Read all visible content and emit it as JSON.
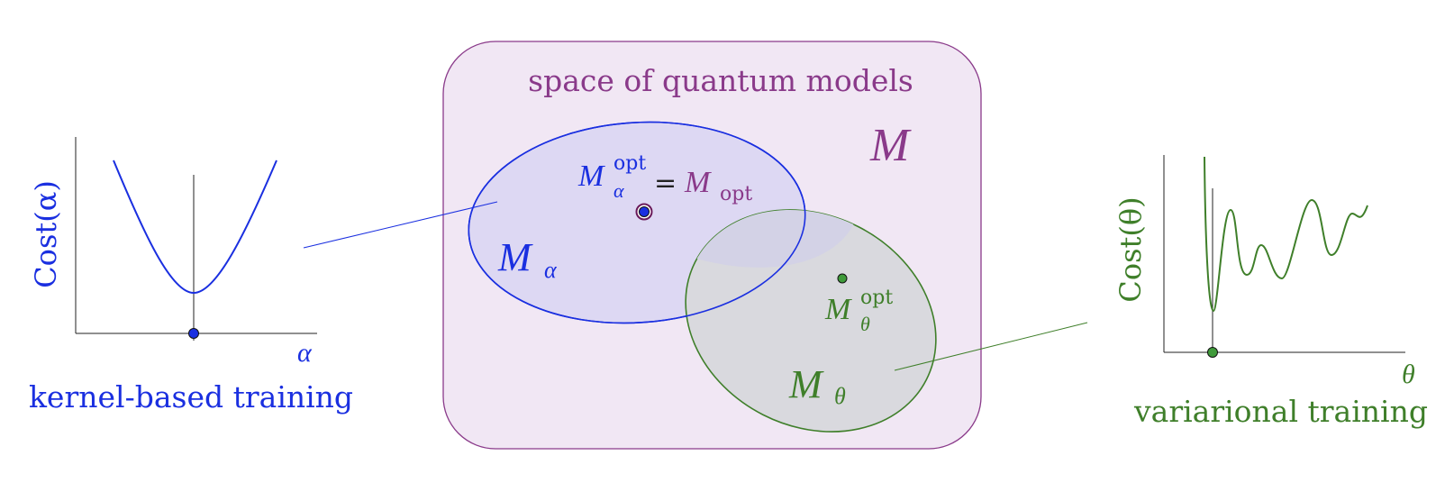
{
  "colors": {
    "blue": "#1a2fe0",
    "green": "#3f7f2a",
    "purple": "#8a3a8a",
    "space_fill": "#f1e7f4",
    "space_stroke": "#8a3a8a",
    "blue_fill": "#ddd8f3",
    "green_fill": "#d9d9de",
    "overlap_fill": "#d5d4e8"
  },
  "space": {
    "title": "space of quantum models",
    "symbol": "M"
  },
  "kernel_set": {
    "symbol": "M",
    "subscript": "α",
    "opt_symbol": "M",
    "opt_sub": "α",
    "opt_sup": "opt",
    "equals": "=",
    "global_opt_symbol": "M",
    "global_opt_sub": "opt"
  },
  "variational_set": {
    "symbol": "M",
    "subscript": "θ",
    "opt_symbol": "M",
    "opt_sub": "θ",
    "opt_sup": "opt"
  },
  "left_panel": {
    "ylabel": "Cost(α)",
    "xlabel": "α",
    "caption": "kernel-based training"
  },
  "right_panel": {
    "ylabel": "Cost(θ)",
    "xlabel": "θ",
    "caption": "variarional training"
  }
}
